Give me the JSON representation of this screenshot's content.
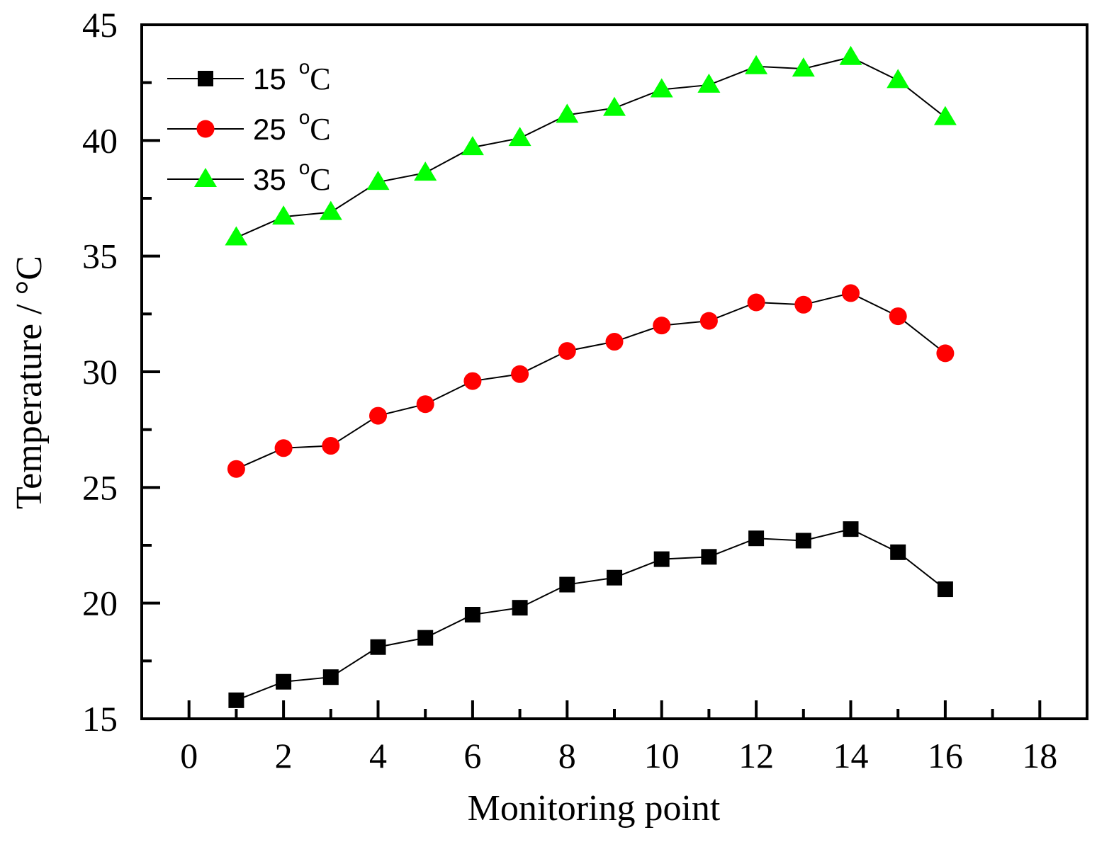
{
  "chart_data": {
    "type": "line",
    "xlabel": "Monitoring point",
    "ylabel": "Temperature / °C",
    "xlim": [
      -1,
      19
    ],
    "ylim": [
      15,
      45
    ],
    "xticks": [
      0,
      2,
      4,
      6,
      8,
      10,
      12,
      14,
      16,
      18
    ],
    "yticks": [
      15,
      20,
      25,
      30,
      35,
      40,
      45
    ],
    "x": [
      1,
      2,
      3,
      4,
      5,
      6,
      7,
      8,
      9,
      10,
      11,
      12,
      13,
      14,
      15,
      16
    ],
    "series": [
      {
        "name": "15 °C",
        "legend_value": "15",
        "marker": "square",
        "color": "#000000",
        "values": [
          15.8,
          16.6,
          16.8,
          18.1,
          18.5,
          19.5,
          19.8,
          20.8,
          21.1,
          21.9,
          22.0,
          22.8,
          22.7,
          23.2,
          22.2,
          20.6
        ]
      },
      {
        "name": "25 °C",
        "legend_value": "25",
        "marker": "circle",
        "color": "#ff0000",
        "values": [
          25.8,
          26.7,
          26.8,
          28.1,
          28.6,
          29.6,
          29.9,
          30.9,
          31.3,
          32.0,
          32.2,
          33.0,
          32.9,
          33.4,
          32.4,
          30.8
        ]
      },
      {
        "name": "35 °C",
        "legend_value": "35",
        "marker": "triangle",
        "color": "#00ff00",
        "values": [
          35.8,
          36.7,
          36.9,
          38.2,
          38.6,
          39.7,
          40.1,
          41.1,
          41.4,
          42.2,
          42.4,
          43.2,
          43.1,
          43.6,
          42.6,
          41.0
        ]
      }
    ],
    "legend": {
      "position": "top-left",
      "unit_superscript": "o",
      "unit_letter": "C"
    }
  }
}
